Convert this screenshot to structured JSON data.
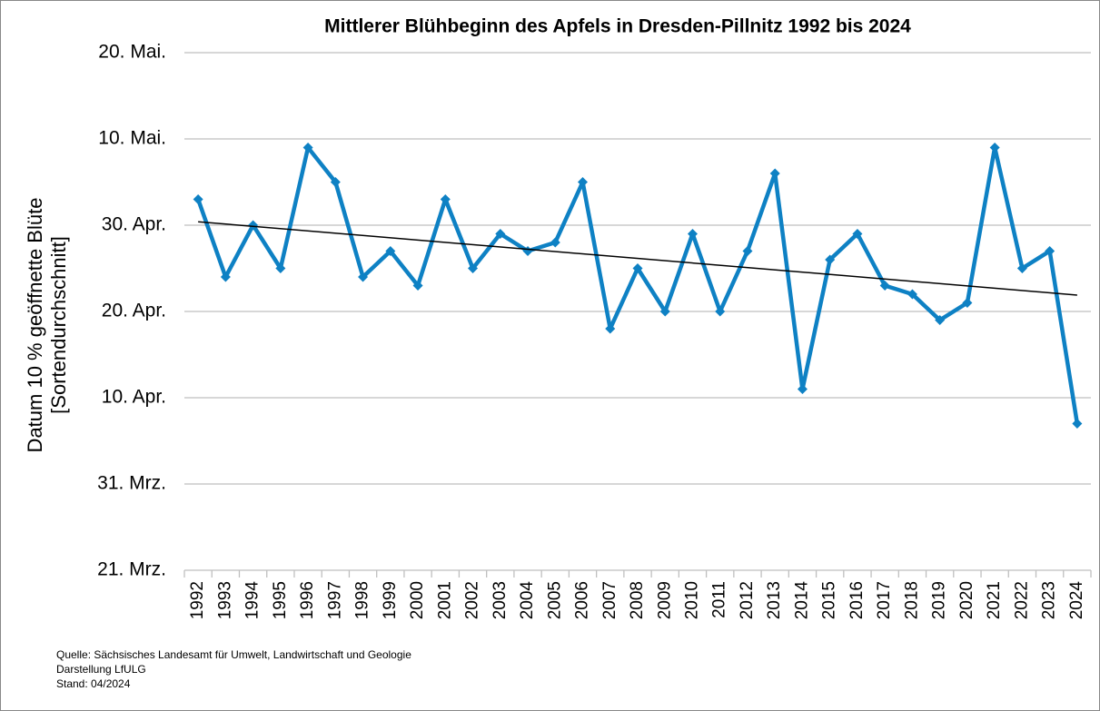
{
  "chart_data": {
    "type": "line",
    "title": "Mittlerer Blühbeginn des Apfels in Dresden-Pillnitz 1992 bis 2024",
    "y_label": [
      "Datum 10 % geöffnette Blüte",
      "[Sortendurchschnitt]"
    ],
    "categories": [
      "1992",
      "1993",
      "1994",
      "1995",
      "1996",
      "1997",
      "1998",
      "1999",
      "2000",
      "2001",
      "2002",
      "2003",
      "2004",
      "2005",
      "2006",
      "2007",
      "2008",
      "2009",
      "2010",
      "2011",
      "2012",
      "2013",
      "2014",
      "2015",
      "2016",
      "2017",
      "2018",
      "2019",
      "2020",
      "2021",
      "2022",
      "2023",
      "2024"
    ],
    "series": [
      {
        "color": "#0e81c4",
        "values": [
          123,
          114,
          120,
          115,
          129,
          125,
          114,
          117,
          113,
          123,
          115,
          119,
          117,
          118,
          125,
          108,
          115,
          110,
          119,
          110,
          117,
          126,
          101,
          116,
          119,
          113,
          112,
          109,
          111,
          129,
          115,
          117,
          97
        ]
      }
    ],
    "trendline": {
      "color": "#000000",
      "values": [
        120.4,
        111.9
      ]
    },
    "ylim": [
      80,
      140
    ],
    "yticks": [
      {
        "value": 80,
        "label": "21. Mrz."
      },
      {
        "value": 90,
        "label": "31. Mrz."
      },
      {
        "value": 100,
        "label": "10. Apr."
      },
      {
        "value": 110,
        "label": "20. Apr."
      },
      {
        "value": 120,
        "label": "30. Apr."
      },
      {
        "value": 130,
        "label": "10. Mai."
      },
      {
        "value": 140,
        "label": "20. Mai."
      }
    ],
    "grid": true,
    "footer": [
      "Quelle: Sächsisches Landesamt für Umwelt, Landwirtschaft und Geologie",
      "Darstellung LfULG",
      "Stand: 04/2024"
    ]
  }
}
